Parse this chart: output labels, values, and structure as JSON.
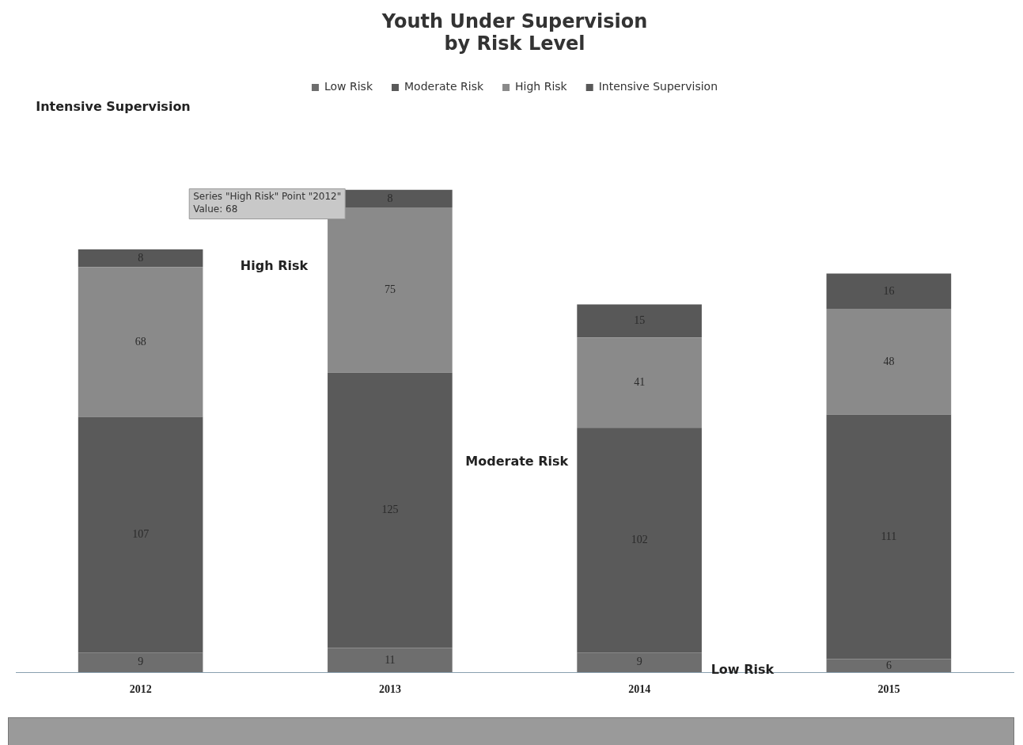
{
  "chart_data": {
    "type": "bar",
    "title": "Youth Under Supervision\nby Risk Level",
    "stacked": true,
    "categories": [
      "2012",
      "2013",
      "2014",
      "2015"
    ],
    "tick_labels": "x",
    "grid": false,
    "legend": "top",
    "data_labels": true,
    "series": [
      {
        "name": "Low Risk",
        "color": "#6e6e6e",
        "values": [
          9,
          11,
          9,
          6
        ]
      },
      {
        "name": "Moderate Risk",
        "color": "#5a5a5a",
        "values": [
          107,
          125,
          102,
          111
        ]
      },
      {
        "name": "High Risk",
        "color": "#8a8a8a",
        "values": [
          68,
          75,
          41,
          48
        ]
      },
      {
        "name": "Intensive Supervision",
        "color": "#585858",
        "values": [
          8,
          8,
          15,
          16
        ]
      }
    ],
    "annotations": [
      "Intensive Supervision",
      "High Risk",
      "Moderate Risk",
      "Low Risk",
      "Series \"High Risk\" Point \"2012\"\nValue: 68"
    ]
  }
}
